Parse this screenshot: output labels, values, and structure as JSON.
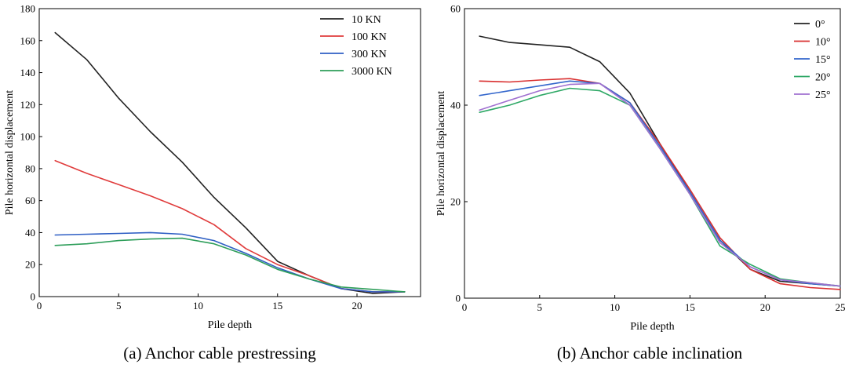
{
  "chart_data": [
    {
      "type": "line",
      "caption": "(a) Anchor cable prestressing",
      "xlabel": "Pile depth",
      "ylabel": "Pile horizontal displacement",
      "xlim": [
        0,
        24
      ],
      "ylim": [
        0,
        180
      ],
      "xticks": [
        0,
        5,
        10,
        15,
        20
      ],
      "yticks": [
        0,
        20,
        40,
        60,
        80,
        100,
        120,
        140,
        160,
        180
      ],
      "legend": "top-right",
      "grid": false,
      "series": [
        {
          "name": "10 KN",
          "color": "#222222",
          "x": [
            1,
            3,
            5,
            7,
            9,
            11,
            13,
            15,
            17,
            19,
            21,
            23
          ],
          "y": [
            165,
            148,
            124,
            103,
            84,
            62,
            43,
            22,
            13,
            5,
            2,
            3
          ]
        },
        {
          "name": "100 KN",
          "color": "#e03b3b",
          "x": [
            1,
            3,
            5,
            7,
            9,
            11,
            13,
            15,
            17,
            19,
            21,
            23
          ],
          "y": [
            85,
            77,
            70,
            63,
            55,
            45,
            30,
            20,
            13,
            5,
            3,
            3
          ]
        },
        {
          "name": "300 KN",
          "color": "#2f5fc4",
          "x": [
            1,
            3,
            5,
            7,
            9,
            11,
            13,
            15,
            17,
            19,
            21,
            23
          ],
          "y": [
            38.5,
            39,
            39.5,
            40,
            39,
            35,
            27,
            18,
            11,
            5,
            3,
            3
          ]
        },
        {
          "name": "3000 KN",
          "color": "#2e9e5a",
          "x": [
            1,
            3,
            5,
            7,
            9,
            11,
            13,
            15,
            17,
            19,
            21,
            23
          ],
          "y": [
            32,
            33,
            35,
            36,
            36.5,
            33,
            26,
            17,
            11,
            6,
            4.5,
            3
          ]
        }
      ]
    },
    {
      "type": "line",
      "caption": "(b) Anchor cable inclination",
      "xlabel": "Pile depth",
      "ylabel": "Pile horizontal displacement",
      "xlim": [
        0,
        25
      ],
      "ylim": [
        0,
        60
      ],
      "xticks": [
        0,
        5,
        10,
        15,
        20,
        25
      ],
      "yticks": [
        0,
        20,
        40,
        60
      ],
      "legend": "top-right",
      "grid": false,
      "series": [
        {
          "name": "0°",
          "color": "#222222",
          "x": [
            1,
            3,
            5,
            7,
            9,
            11,
            13,
            15,
            17,
            19,
            21,
            23,
            25
          ],
          "y": [
            54.3,
            53,
            52.5,
            52,
            49,
            42.5,
            32,
            22,
            12,
            6,
            3.5,
            3,
            2.5
          ]
        },
        {
          "name": "10°",
          "color": "#d93030",
          "x": [
            1,
            3,
            5,
            7,
            9,
            11,
            13,
            15,
            17,
            19,
            21,
            23,
            25
          ],
          "y": [
            45,
            44.8,
            45.2,
            45.5,
            44.5,
            40.5,
            32,
            22.5,
            12.5,
            6,
            3,
            2.2,
            1.8
          ]
        },
        {
          "name": "15°",
          "color": "#3366cc",
          "x": [
            1,
            3,
            5,
            7,
            9,
            11,
            13,
            15,
            17,
            19,
            21,
            23,
            25
          ],
          "y": [
            42,
            43,
            44,
            45,
            44.5,
            40.5,
            31.5,
            22,
            12,
            6.5,
            3.8,
            3,
            2.5
          ]
        },
        {
          "name": "20°",
          "color": "#2ea866",
          "x": [
            1,
            3,
            5,
            7,
            9,
            11,
            13,
            15,
            17,
            19,
            21,
            23,
            25
          ],
          "y": [
            38.5,
            40,
            42,
            43.5,
            43,
            40,
            31,
            21.5,
            10.8,
            7,
            4,
            3.2,
            2.5
          ]
        },
        {
          "name": "25°",
          "color": "#a070d0",
          "x": [
            1,
            3,
            5,
            7,
            9,
            11,
            13,
            15,
            17,
            19,
            21,
            23,
            25
          ],
          "y": [
            39,
            41,
            43,
            44.3,
            44.5,
            40,
            31,
            21.5,
            11.5,
            6.5,
            3.8,
            3.2,
            2.5
          ]
        }
      ]
    }
  ]
}
